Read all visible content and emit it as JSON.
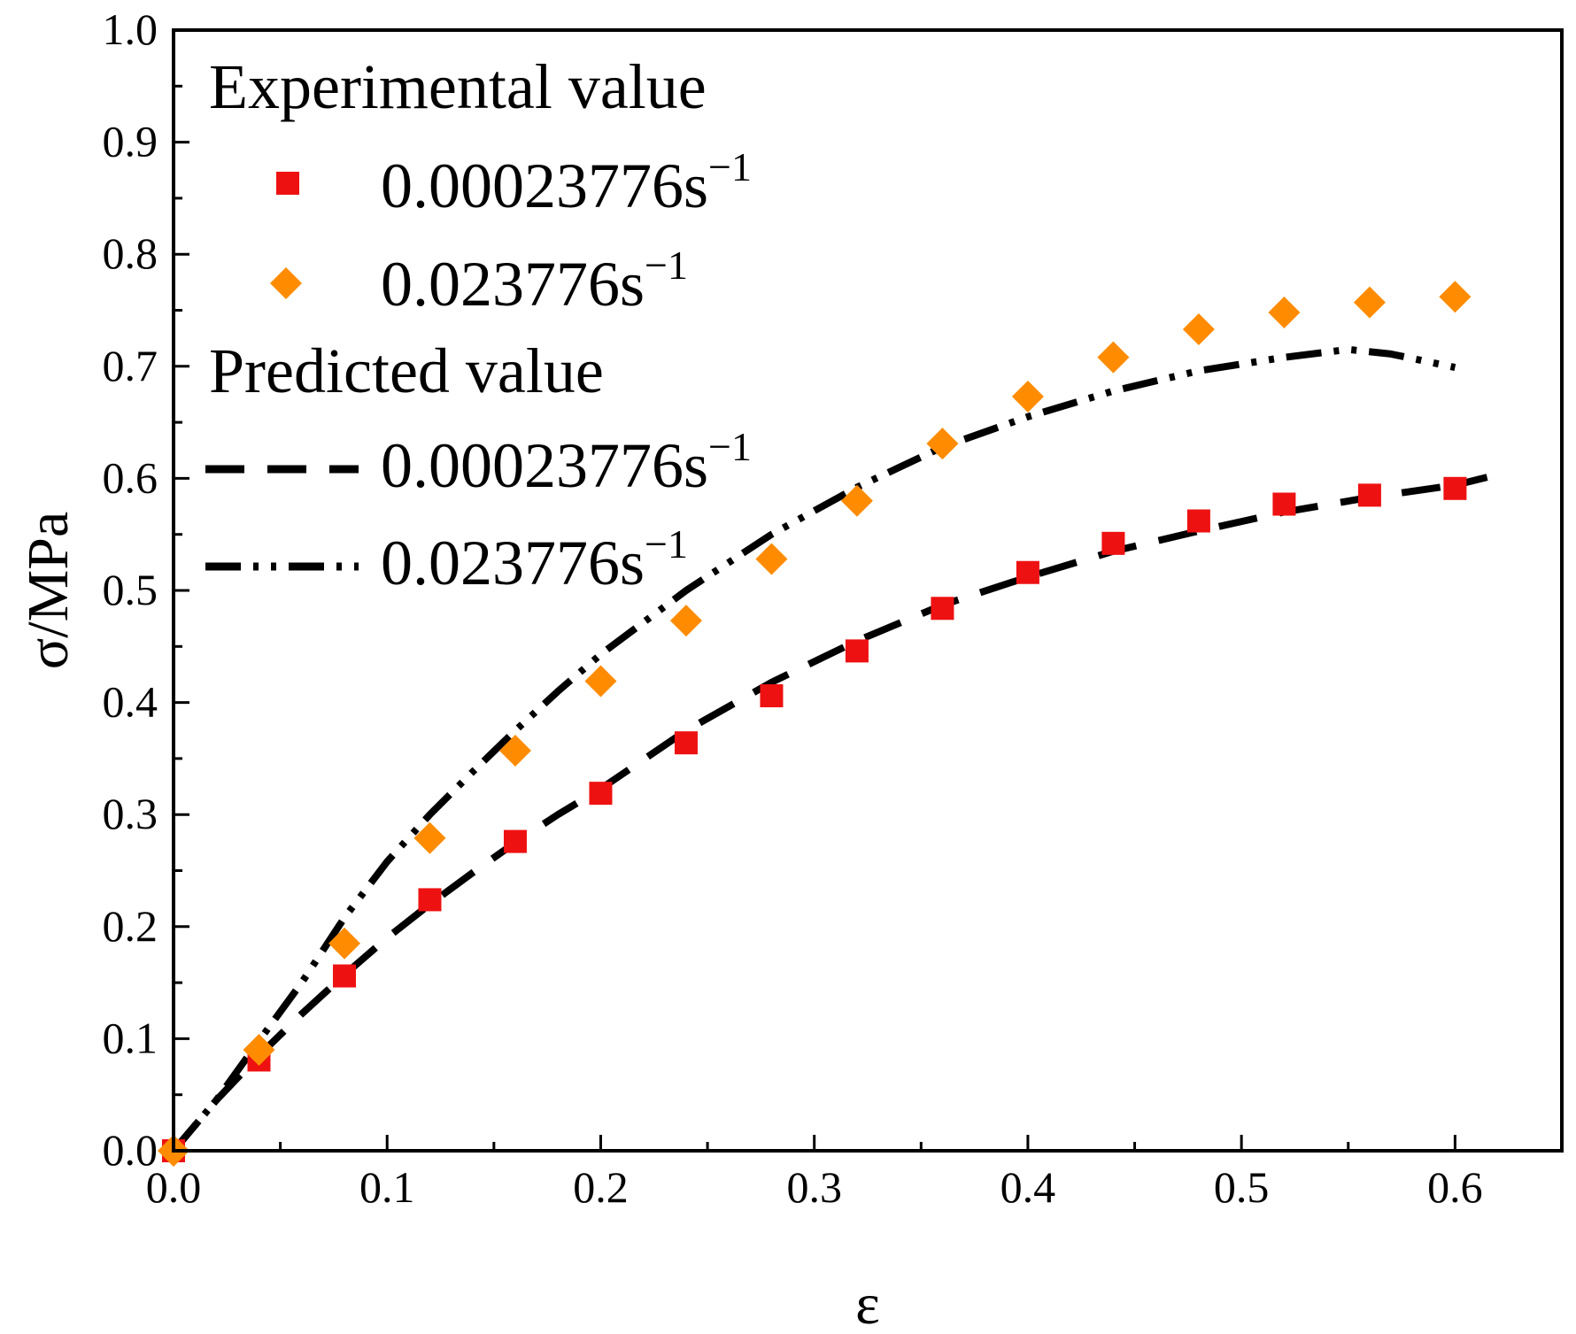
{
  "chart_data": {
    "type": "scatter",
    "xlabel": "ε",
    "ylabel": "σ/MPa",
    "xlim": [
      0,
      0.65
    ],
    "ylim": [
      0,
      1.0
    ],
    "xticks": [
      "0.0",
      "0.1",
      "0.2",
      "0.3",
      "0.4",
      "0.5",
      "0.6"
    ],
    "yticks": [
      "0.0",
      "0.1",
      "0.2",
      "0.3",
      "0.4",
      "0.5",
      "0.6",
      "0.7",
      "0.8",
      "0.9",
      "1.0"
    ],
    "legend": {
      "position": "top-left",
      "experimental_header": "Experimental value",
      "predicted_header": "Predicted value"
    },
    "experimental": [
      {
        "name": "0.00023776s",
        "name_sup": "−1",
        "marker": "square",
        "color": "#ee1111",
        "x": [
          0,
          0.04,
          0.08,
          0.12,
          0.16,
          0.2,
          0.24,
          0.28,
          0.32,
          0.36,
          0.4,
          0.44,
          0.48,
          0.52,
          0.56,
          0.6
        ],
        "y": [
          0,
          0.081,
          0.156,
          0.224,
          0.276,
          0.319,
          0.364,
          0.406,
          0.446,
          0.484,
          0.516,
          0.542,
          0.562,
          0.577,
          0.585,
          0.591
        ]
      },
      {
        "name": "0.023776s",
        "name_sup": "−1",
        "marker": "diamond",
        "color": "#ff8c00",
        "x": [
          0,
          0.04,
          0.08,
          0.12,
          0.16,
          0.2,
          0.24,
          0.28,
          0.32,
          0.36,
          0.4,
          0.44,
          0.48,
          0.52,
          0.56,
          0.6
        ],
        "y": [
          0,
          0.09,
          0.185,
          0.279,
          0.357,
          0.419,
          0.473,
          0.528,
          0.58,
          0.631,
          0.673,
          0.708,
          0.733,
          0.748,
          0.757,
          0.762
        ]
      }
    ],
    "predicted": [
      {
        "name": "0.00023776s",
        "name_sup": "−1",
        "style": "dash",
        "color": "#000000",
        "x": [
          0,
          0.02,
          0.04,
          0.06,
          0.08,
          0.1,
          0.12,
          0.14,
          0.16,
          0.18,
          0.2,
          0.24,
          0.28,
          0.32,
          0.36,
          0.4,
          0.44,
          0.48,
          0.52,
          0.56,
          0.6,
          0.615
        ],
        "y": [
          0,
          0.045,
          0.085,
          0.122,
          0.157,
          0.19,
          0.22,
          0.248,
          0.275,
          0.3,
          0.323,
          0.375,
          0.418,
          0.455,
          0.487,
          0.512,
          0.535,
          0.553,
          0.57,
          0.583,
          0.594,
          0.601
        ]
      },
      {
        "name": "0.023776s",
        "name_sup": "−1",
        "style": "dash-dot-dot",
        "color": "#000000",
        "x": [
          0,
          0.02,
          0.04,
          0.06,
          0.08,
          0.1,
          0.12,
          0.14,
          0.16,
          0.18,
          0.2,
          0.24,
          0.28,
          0.32,
          0.36,
          0.4,
          0.44,
          0.48,
          0.52,
          0.55,
          0.57,
          0.6
        ],
        "y": [
          0,
          0.045,
          0.098,
          0.15,
          0.208,
          0.258,
          0.3,
          0.338,
          0.375,
          0.41,
          0.443,
          0.5,
          0.55,
          0.592,
          0.628,
          0.655,
          0.678,
          0.696,
          0.708,
          0.715,
          0.711,
          0.699
        ]
      }
    ]
  }
}
